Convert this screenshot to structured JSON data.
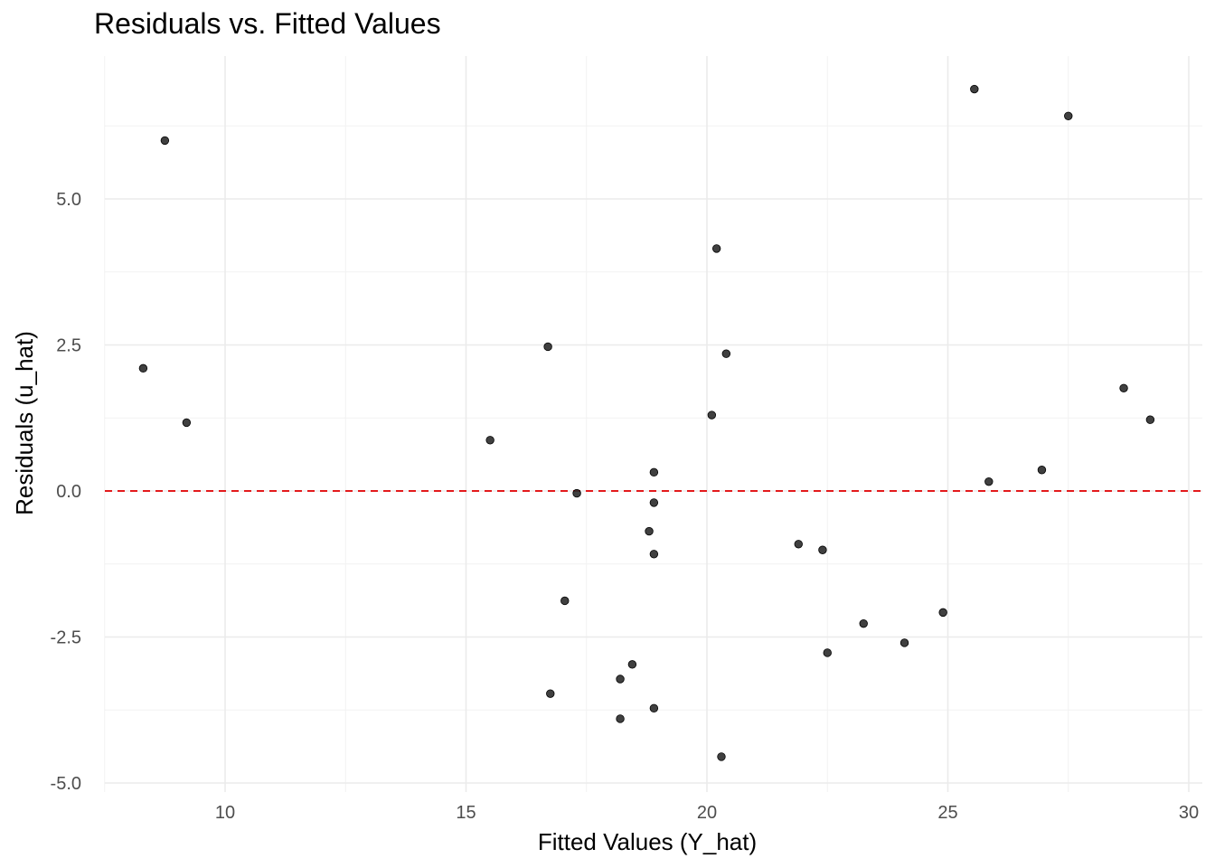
{
  "chart_data": {
    "type": "scatter",
    "title": "Residuals vs. Fitted Values",
    "xlabel": "Fitted Values (Y_hat)",
    "ylabel": "Residuals (u_hat)",
    "xlim": [
      7.5,
      30.25
    ],
    "ylim": [
      -5.0,
      7.2
    ],
    "x_ticks": [
      10,
      15,
      20,
      25,
      30
    ],
    "x_tick_labels": [
      "10",
      "15",
      "20",
      "25",
      "30"
    ],
    "y_ticks": [
      -5.0,
      -2.5,
      0.0,
      2.5,
      5.0
    ],
    "y_tick_labels": [
      "-5.0",
      "-2.5",
      "0.0",
      "2.5",
      "5.0"
    ],
    "grid": true,
    "reference_line": {
      "y": 0.0,
      "color": "#e31a1c",
      "style": "dashed"
    },
    "point_color": "#2b2b2b",
    "points": [
      {
        "x": 8.3,
        "y": 2.1
      },
      {
        "x": 8.75,
        "y": 6.0
      },
      {
        "x": 9.2,
        "y": 1.17
      },
      {
        "x": 15.5,
        "y": 0.87
      },
      {
        "x": 16.7,
        "y": 2.47
      },
      {
        "x": 16.75,
        "y": -3.47
      },
      {
        "x": 17.05,
        "y": -1.88
      },
      {
        "x": 17.3,
        "y": -0.04
      },
      {
        "x": 18.2,
        "y": -3.22
      },
      {
        "x": 18.2,
        "y": -3.9
      },
      {
        "x": 18.45,
        "y": -2.97
      },
      {
        "x": 18.8,
        "y": -0.69
      },
      {
        "x": 18.9,
        "y": 0.32
      },
      {
        "x": 18.9,
        "y": -0.2
      },
      {
        "x": 18.9,
        "y": -1.08
      },
      {
        "x": 18.9,
        "y": -3.72
      },
      {
        "x": 20.1,
        "y": 1.3
      },
      {
        "x": 20.2,
        "y": 4.15
      },
      {
        "x": 20.3,
        "y": -4.55
      },
      {
        "x": 20.4,
        "y": 2.35
      },
      {
        "x": 21.9,
        "y": -0.91
      },
      {
        "x": 22.4,
        "y": -1.01
      },
      {
        "x": 22.5,
        "y": -2.77
      },
      {
        "x": 23.25,
        "y": -2.27
      },
      {
        "x": 24.1,
        "y": -2.6
      },
      {
        "x": 24.9,
        "y": -2.08
      },
      {
        "x": 25.55,
        "y": 6.88
      },
      {
        "x": 25.85,
        "y": 0.16
      },
      {
        "x": 26.95,
        "y": 0.36
      },
      {
        "x": 27.5,
        "y": 6.42
      },
      {
        "x": 28.65,
        "y": 1.76
      },
      {
        "x": 29.2,
        "y": 1.22
      }
    ]
  }
}
